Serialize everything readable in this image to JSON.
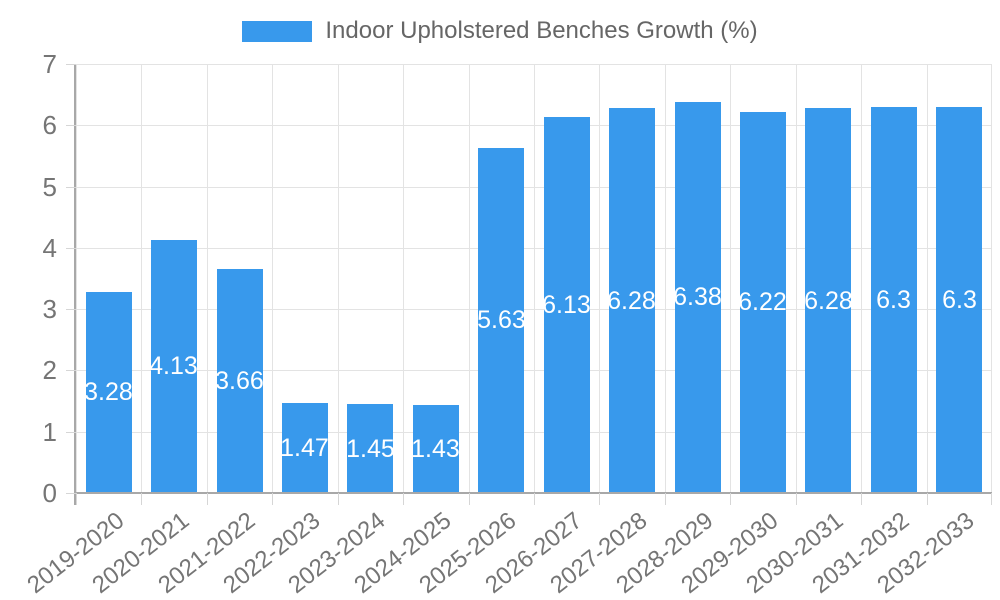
{
  "legend": {
    "label": "Indoor Upholstered Benches Growth (%)"
  },
  "chart_data": {
    "type": "bar",
    "title": "Indoor Upholstered Benches Growth (%)",
    "legend_position": "top",
    "categories": [
      "2019-2020",
      "2020-2021",
      "2021-2022",
      "2022-2023",
      "2023-2024",
      "2024-2025",
      "2025-2026",
      "2026-2027",
      "2027-2028",
      "2028-2029",
      "2029-2030",
      "2030-2031",
      "2031-2032",
      "2032-2033"
    ],
    "values": [
      3.28,
      4.13,
      3.66,
      1.47,
      1.45,
      1.43,
      5.63,
      6.13,
      6.28,
      6.38,
      6.22,
      6.28,
      6.3,
      6.3
    ],
    "value_labels": [
      "3.28",
      "4.13",
      "3.66",
      "1.47",
      "1.45",
      "1.43",
      "5.63",
      "6.13",
      "6.28",
      "6.38",
      "6.22",
      "6.28",
      "6.3",
      "6.3"
    ],
    "xlabel": "",
    "ylabel": "",
    "ylim": [
      0,
      7
    ],
    "yticks": [
      0,
      1,
      2,
      3,
      4,
      5,
      6,
      7
    ],
    "grid": true,
    "colors": {
      "bar": "#3899EC",
      "grid": "#E3E3E3",
      "axis": "#A8A8A8",
      "tick": "#D6D6D6",
      "tick_text": "#757575",
      "bar_label": "#FFFFFF",
      "legend_text": "#666666"
    }
  }
}
